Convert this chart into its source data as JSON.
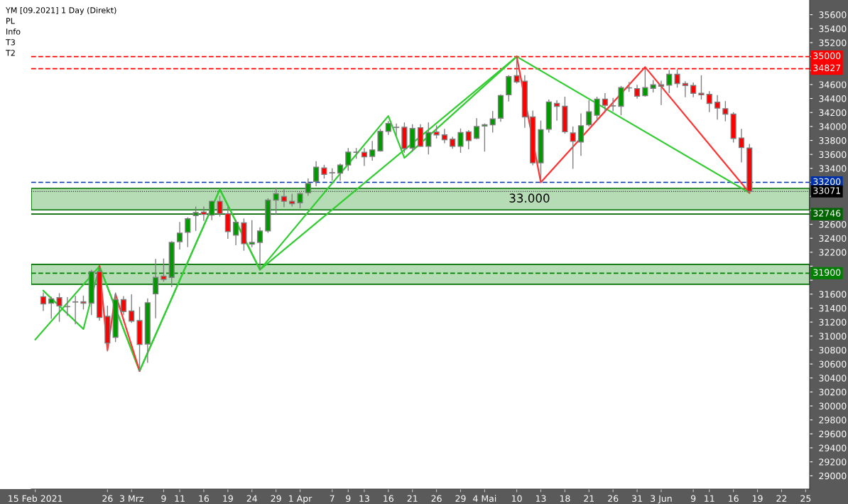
{
  "chart_data": {
    "type": "candlestick",
    "title": "YM [09.2021] 1 Day (Direkt)",
    "categories": [
      "15 Feb 2021",
      null,
      null,
      null,
      null,
      null,
      null,
      null,
      null,
      "26",
      null,
      null,
      "3 Mrz",
      null,
      null,
      null,
      "9",
      null,
      "11",
      null,
      null,
      "16",
      null,
      null,
      "19",
      null,
      null,
      "24",
      null,
      null,
      "29",
      null,
      null,
      "1 Apr",
      null,
      null,
      null,
      "7",
      null,
      "9",
      null,
      "13",
      null,
      null,
      "16",
      null,
      null,
      "21",
      null,
      null,
      "26",
      null,
      null,
      "29",
      null,
      null,
      "4 Mai",
      null,
      null,
      null,
      "10",
      null,
      null,
      "13",
      null,
      null,
      "18",
      null,
      null,
      "21",
      null,
      null,
      "26",
      null,
      null,
      "31",
      null,
      null,
      "3 Jun",
      null,
      null,
      null,
      "9",
      null,
      "11",
      null,
      null,
      "16",
      null,
      null,
      "19",
      null,
      null,
      "22",
      null,
      null,
      "25"
    ],
    "ohlc": [
      null,
      [
        31563,
        31624,
        31358,
        31460
      ],
      [
        31471,
        31563,
        31248,
        31532
      ],
      [
        31549,
        31614,
        31204,
        31433
      ],
      [
        31423,
        31556,
        31289,
        31420
      ],
      [
        31490,
        31577,
        31167,
        31486
      ],
      [
        31491,
        31580,
        31380,
        31471
      ],
      [
        31471,
        31949,
        31300,
        31922
      ],
      [
        31922,
        31983,
        31221,
        31266
      ],
      [
        31283,
        31436,
        30780,
        30900
      ],
      [
        30982,
        31624,
        30914,
        31522
      ],
      [
        31522,
        31573,
        31300,
        31351
      ],
      [
        31358,
        31597,
        31187,
        31214
      ],
      [
        31221,
        31419,
        30497,
        30879
      ],
      [
        30886,
        31539,
        30616,
        31477
      ],
      [
        31604,
        32103,
        31255,
        31840
      ],
      [
        31857,
        32110,
        31778,
        31812
      ],
      [
        31839,
        32358,
        31703,
        32341
      ],
      [
        32351,
        32632,
        32239,
        32474
      ],
      [
        32485,
        32700,
        32273,
        32679
      ],
      [
        32724,
        32854,
        32505,
        32768
      ],
      [
        32775,
        32854,
        32649,
        32741
      ],
      [
        32731,
        32939,
        32659,
        32929
      ],
      [
        32929,
        33007,
        32710,
        32751
      ],
      [
        32751,
        32854,
        32392,
        32495
      ],
      [
        32444,
        32666,
        32300,
        32628
      ],
      [
        32621,
        32683,
        32222,
        32321
      ],
      [
        32314,
        32659,
        32273,
        32341
      ],
      [
        32341,
        32556,
        31950,
        32505
      ],
      [
        32505,
        32973,
        32478,
        32946
      ],
      [
        32946,
        33127,
        32734,
        33038
      ],
      [
        32997,
        33120,
        32844,
        32929
      ],
      [
        32929,
        33038,
        32854,
        32895
      ],
      [
        32908,
        33059,
        32830,
        33038
      ],
      [
        33052,
        33257,
        33007,
        33185
      ],
      [
        33213,
        33503,
        33144,
        33418
      ],
      [
        33407,
        33452,
        33254,
        33315
      ],
      [
        33339,
        33400,
        33223,
        33335
      ],
      [
        33332,
        33469,
        33223,
        33448
      ],
      [
        33448,
        33691,
        33366,
        33633
      ],
      [
        33633,
        33691,
        33537,
        33630
      ],
      [
        33630,
        33691,
        33435,
        33565
      ],
      [
        33572,
        33794,
        33510,
        33664
      ],
      [
        33650,
        33965,
        33640,
        33930
      ],
      [
        33930,
        34077,
        33879,
        34043
      ],
      [
        33989,
        34043,
        33872,
        33985
      ],
      [
        33989,
        34057,
        33623,
        33684
      ],
      [
        33691,
        34033,
        33640,
        33971
      ],
      [
        33982,
        34033,
        33708,
        33715
      ],
      [
        33715,
        34057,
        33599,
        33913
      ],
      [
        33920,
        34016,
        33828,
        33879
      ],
      [
        33879,
        33965,
        33760,
        33811
      ],
      [
        33818,
        33852,
        33681,
        33715
      ],
      [
        33715,
        33971,
        33623,
        33913
      ],
      [
        33924,
        33947,
        33674,
        33797
      ],
      [
        33831,
        34119,
        33818,
        33999
      ],
      [
        34006,
        34043,
        33640,
        34026
      ],
      [
        34023,
        34221,
        33913,
        34108
      ],
      [
        34118,
        34460,
        34067,
        34443
      ],
      [
        34453,
        34733,
        34358,
        34713
      ],
      [
        34727,
        34990,
        34614,
        34638
      ],
      [
        34648,
        34733,
        33982,
        34136
      ],
      [
        34136,
        34228,
        33445,
        33479
      ],
      [
        33479,
        34084,
        33200,
        33954
      ],
      [
        33961,
        34385,
        33913,
        34351
      ],
      [
        34330,
        34375,
        34084,
        34289
      ],
      [
        34289,
        34426,
        33896,
        33924
      ],
      [
        33907,
        33999,
        33394,
        33787
      ],
      [
        33777,
        34187,
        33579,
        34010
      ],
      [
        34023,
        34375,
        33999,
        34211
      ],
      [
        34160,
        34426,
        34084,
        34392
      ],
      [
        34392,
        34477,
        34214,
        34303
      ],
      [
        34296,
        34409,
        34214,
        34293
      ],
      [
        34289,
        34580,
        34160,
        34556
      ],
      [
        34553,
        34638,
        34494,
        34551
      ],
      [
        34542,
        34597,
        34399,
        34433
      ],
      [
        34440,
        34820,
        34426,
        34556
      ],
      [
        34546,
        34665,
        34487,
        34597
      ],
      [
        34597,
        34655,
        34306,
        34576
      ],
      [
        34590,
        34809,
        34477,
        34747
      ],
      [
        34747,
        34819,
        34556,
        34614
      ],
      [
        34614,
        34648,
        34419,
        34587
      ],
      [
        34587,
        34630,
        34419,
        34474
      ],
      [
        34474,
        34733,
        34385,
        34453
      ],
      [
        34460,
        34505,
        34204,
        34330
      ],
      [
        34347,
        34450,
        34098,
        34262
      ],
      [
        34255,
        34364,
        34074,
        34177
      ],
      [
        34177,
        34204,
        33770,
        33828
      ],
      [
        33835,
        33965,
        33486,
        33698
      ],
      [
        33691,
        33749,
        33060,
        33071
      ],
      null,
      null,
      null,
      null,
      null,
      null,
      null
    ],
    "series": [
      {
        "type": "line",
        "color": "#33cc33",
        "values": [
          30950,
          null,
          null,
          null,
          null,
          null,
          null,
          null,
          32000,
          null,
          null,
          null,
          null,
          30500,
          null,
          null,
          null,
          null,
          null,
          null,
          null,
          null,
          null,
          33100,
          null,
          null,
          null,
          null,
          31950,
          null,
          null,
          null,
          null,
          null,
          null,
          null,
          null,
          null,
          null,
          null,
          null,
          null,
          null,
          null,
          null,
          null,
          null,
          null,
          null,
          null,
          null,
          null,
          null,
          null,
          null,
          null,
          null,
          null,
          null,
          null,
          35000,
          null,
          null,
          null,
          null,
          null,
          null,
          null,
          null,
          null,
          null,
          null,
          null,
          null,
          null,
          null,
          null,
          null,
          null,
          null,
          null,
          null,
          null,
          null,
          null,
          null,
          null,
          null,
          null,
          33050,
          null,
          null,
          null,
          null,
          null,
          null,
          null
        ]
      },
      {
        "type": "line",
        "color": "#33cc33",
        "values": [
          null,
          31650,
          null,
          null,
          null,
          null,
          31100,
          null,
          32000,
          null,
          null,
          null,
          null,
          30500,
          null,
          null,
          null,
          null,
          null,
          null,
          null,
          null,
          null,
          33100,
          null,
          null,
          null,
          null,
          31950,
          null,
          null,
          null,
          null,
          null,
          null,
          null,
          null,
          null,
          null,
          null,
          null,
          null,
          null,
          null,
          34150,
          null,
          33550,
          null,
          null,
          null,
          null,
          null,
          null,
          null,
          null,
          null,
          null,
          null,
          null,
          null,
          35000,
          null,
          null,
          null,
          null,
          null,
          null,
          null,
          null,
          null,
          null,
          null,
          null,
          null,
          null,
          null,
          null,
          null,
          null,
          null,
          null,
          null,
          null,
          null,
          null,
          null,
          null,
          null,
          null,
          null,
          null,
          null,
          null,
          null,
          null,
          null,
          null
        ]
      },
      {
        "type": "line",
        "color": "#ff3333",
        "values": [
          null,
          null,
          null,
          null,
          null,
          null,
          null,
          null,
          32000,
          30800,
          31600,
          null,
          null,
          30500,
          null,
          null,
          null,
          null,
          null,
          null,
          null,
          null,
          null,
          null,
          null,
          null,
          null,
          null,
          null,
          null,
          null,
          null,
          null,
          null,
          null,
          null,
          null,
          null,
          null,
          null,
          null,
          null,
          null,
          null,
          null,
          null,
          null,
          null,
          null,
          null,
          null,
          null,
          null,
          null,
          null,
          null,
          null,
          null,
          null,
          null,
          null,
          null,
          null,
          null,
          null,
          null,
          null,
          null,
          null,
          null,
          null,
          null,
          null,
          null,
          null,
          null,
          null,
          null,
          null,
          null,
          null,
          null,
          null,
          null,
          null,
          null,
          null,
          null,
          null,
          null,
          null,
          null,
          null,
          null,
          null,
          null,
          null
        ]
      },
      {
        "type": "line",
        "color": "#ff3333",
        "values": [
          null,
          null,
          null,
          null,
          null,
          null,
          null,
          null,
          null,
          null,
          null,
          null,
          null,
          null,
          null,
          null,
          null,
          null,
          null,
          null,
          null,
          null,
          null,
          null,
          null,
          null,
          null,
          null,
          null,
          null,
          null,
          null,
          null,
          null,
          null,
          null,
          null,
          null,
          null,
          null,
          null,
          null,
          null,
          null,
          null,
          null,
          null,
          null,
          null,
          null,
          null,
          null,
          null,
          null,
          null,
          null,
          null,
          null,
          null,
          null,
          35000,
          null,
          null,
          33200,
          null,
          null,
          null,
          null,
          null,
          null,
          null,
          null,
          null,
          null,
          null,
          null,
          34850,
          null,
          null,
          null,
          null,
          null,
          null,
          null,
          null,
          null,
          null,
          null,
          null,
          33050,
          null,
          null,
          null,
          null,
          null,
          null,
          null
        ]
      }
    ],
    "ylim": [
      28810,
      35810
    ],
    "yticks": [
      29000,
      29200,
      29400,
      29600,
      29800,
      30000,
      30200,
      30400,
      30600,
      30800,
      31000,
      31200,
      31400,
      31600,
      {
        "value": 31800,
        "label": null
      },
      {
        "value": 32000,
        "label": null
      },
      32200,
      32400,
      32600,
      {
        "value": 32800,
        "label": null
      },
      {
        "value": 33000,
        "label": null
      },
      {
        "value": 33200,
        "label": null
      },
      33400,
      33600,
      33800,
      34000,
      34200,
      34400,
      34600,
      {
        "value": 34800,
        "label": null
      },
      {
        "value": 35000,
        "label": null
      },
      35200,
      35400,
      35600
    ],
    "ref_lines": [
      {
        "axis": "y",
        "value": 35000,
        "label": "35000",
        "color": "#ff0000",
        "line_style": "dashed"
      },
      {
        "axis": "y",
        "value": 34827,
        "label": "34827",
        "color": "#ff0000",
        "line_style": "dashed"
      },
      {
        "axis": "y",
        "value": 33200,
        "label": "33200",
        "color": "#0033aa",
        "line_style": "dashed"
      },
      {
        "axis": "y",
        "value": 33071,
        "label": "33071",
        "color": "#000000",
        "line_style": "dotted"
      },
      {
        "axis": "y",
        "value": 32746,
        "label": "32746",
        "color": "#006400",
        "line_style": "solid"
      },
      {
        "axis": "y",
        "value": 31900,
        "label": "31900",
        "color": "#008000",
        "line_style": "dashed"
      }
    ],
    "bands": [
      {
        "axis": "y",
        "from": 32806,
        "to": 33114,
        "label": "33.000",
        "color": "#b5dcb5"
      },
      {
        "axis": "y",
        "from": 31741,
        "to": 32027,
        "color": "#b5dcb5"
      }
    ],
    "annotations": [
      "PL",
      "Info",
      "T3",
      "T2"
    ]
  }
}
